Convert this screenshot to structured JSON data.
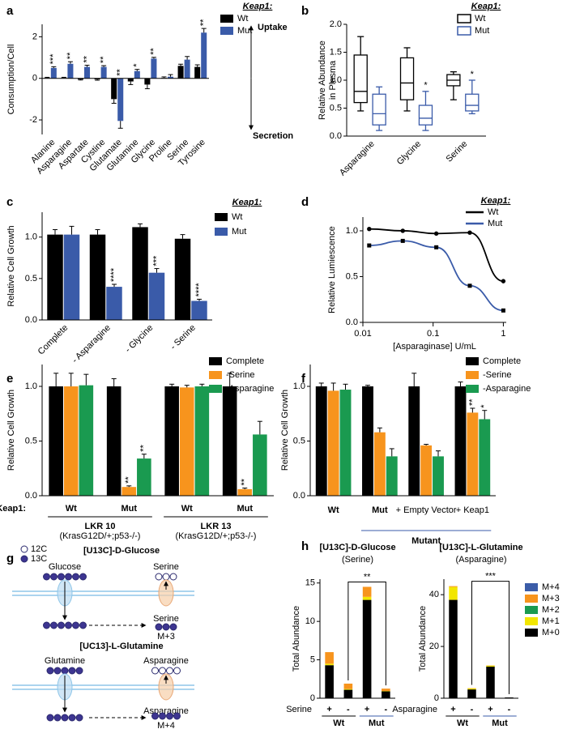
{
  "chart_data": [
    {
      "type": "bar",
      "panel": "a",
      "ylabel": "Consumption/Cell",
      "legend_title": "Keap1:",
      "uptake_label": "Uptake",
      "secretion_label": "Secretion",
      "categories": [
        "Alanine",
        "Asparagine",
        "Aspartate",
        "Cystine",
        "Glutamate",
        "Glutamine",
        "Glycine",
        "Proline",
        "Serine",
        "Tyrosine"
      ],
      "series": [
        {
          "name": "Wt",
          "color": "#000000",
          "values": [
            0.02,
            0.02,
            -0.05,
            -0.05,
            -1.0,
            -0.15,
            -0.3,
            0.02,
            0.6,
            0.55
          ],
          "errors": [
            0.03,
            0.03,
            0.03,
            0.04,
            0.2,
            0.15,
            0.2,
            0.05,
            0.08,
            0.1
          ]
        },
        {
          "name": "Mut",
          "color": "#3a5ba9",
          "values": [
            0.5,
            0.7,
            0.55,
            0.55,
            -2.05,
            0.35,
            0.95,
            0.08,
            0.9,
            2.2
          ],
          "errors": [
            0.06,
            0.1,
            0.08,
            0.06,
            0.35,
            0.08,
            0.06,
            0.1,
            0.15,
            0.2
          ],
          "significance": [
            "***",
            "**",
            "**",
            "**",
            "**",
            "*",
            "**",
            null,
            null,
            "**"
          ]
        }
      ],
      "ylim": [
        -2.7,
        2.6
      ],
      "yticks": [
        -2,
        0,
        2
      ]
    },
    {
      "type": "box",
      "panel": "b",
      "ylabel": [
        "Relative Abundance",
        "in Plasma"
      ],
      "legend_title": "Keap1:",
      "categories": [
        "Asparagine",
        "Glycine",
        "Serine"
      ],
      "series": [
        {
          "name": "Wt",
          "color": "#000000",
          "stats": [
            {
              "min": 0.45,
              "q1": 0.6,
              "median": 0.8,
              "q3": 1.45,
              "max": 1.78
            },
            {
              "min": 0.45,
              "q1": 0.65,
              "median": 0.95,
              "q3": 1.4,
              "max": 1.58
            },
            {
              "min": 0.65,
              "q1": 0.9,
              "median": 1.0,
              "q3": 1.1,
              "max": 1.15
            }
          ]
        },
        {
          "name": "Mut",
          "color": "#3a5ba9",
          "stats": [
            {
              "min": 0.1,
              "q1": 0.2,
              "median": 0.4,
              "q3": 0.75,
              "max": 0.88
            },
            {
              "min": 0.1,
              "q1": 0.2,
              "median": 0.32,
              "q3": 0.55,
              "max": 0.8
            },
            {
              "min": 0.4,
              "q1": 0.45,
              "median": 0.55,
              "q3": 0.75,
              "max": 1.0
            }
          ],
          "significance": [
            null,
            "*",
            "*"
          ]
        }
      ],
      "ylim": [
        0,
        2
      ],
      "yticks": [
        {
          "value": 0,
          "label": "0.0"
        },
        0.5,
        {
          "value": 1,
          "label": "1.0"
        },
        1.5,
        {
          "value": 2,
          "label": "2.0"
        }
      ]
    },
    {
      "type": "bar",
      "panel": "c",
      "ylabel": "Relative Cell Growth",
      "legend_title": "Keap1:",
      "categories": [
        "Complete",
        "- Asparagine",
        "- Glycine",
        "- Serine"
      ],
      "series": [
        {
          "name": "Wt",
          "color": "#000000",
          "values": [
            1.03,
            1.03,
            1.12,
            0.98
          ],
          "errors": [
            0.06,
            0.06,
            0.04,
            0.05
          ]
        },
        {
          "name": "Mut",
          "color": "#3a5ba9",
          "values": [
            1.03,
            0.4,
            0.57,
            0.23
          ],
          "errors": [
            0.1,
            0.03,
            0.05,
            0.02
          ],
          "significance": [
            null,
            "****",
            "***",
            "****"
          ]
        }
      ],
      "ylim": [
        0,
        1.3
      ],
      "yticks": [
        {
          "value": 0,
          "label": "0.0"
        },
        0.5,
        {
          "value": 1,
          "label": "1.0"
        }
      ]
    },
    {
      "type": "line",
      "panel": "d",
      "ylabel": "Relative Lumiescence",
      "xlabel": "[Asparaginase] U/mL",
      "legend_title": "Keap1:",
      "x": [
        0.0123,
        0.037,
        0.111,
        0.333,
        1
      ],
      "series": [
        {
          "name": "Wt",
          "color": "#000000",
          "marker": "circle",
          "values": [
            1.02,
            1.0,
            0.97,
            0.98,
            0.45
          ]
        },
        {
          "name": "Mut",
          "color": "#3a5ba9",
          "marker": "square",
          "values": [
            0.84,
            0.89,
            0.82,
            0.4,
            0.13
          ]
        }
      ],
      "log_x": true,
      "xlim": [
        0.01,
        1.1
      ],
      "xticks": [
        0.01,
        0.1,
        1
      ],
      "ylim": [
        0,
        1.15
      ],
      "yticks": [
        {
          "value": 0,
          "label": "0.0"
        },
        0.5,
        {
          "value": 1,
          "label": "1.0"
        }
      ]
    },
    {
      "type": "bar",
      "panel": "e",
      "ylabel": "Relative Cell Growth",
      "row_label": "Keap1:",
      "categories": [
        "Wt",
        "Mut",
        "Wt",
        "Mut"
      ],
      "groups": [
        "LKR 10",
        "LKR 13"
      ],
      "group_sublabels": [
        "(KrasG12D/+;p53-/-)",
        "(KrasG12D/+;p53-/-)"
      ],
      "series": [
        {
          "name": "Complete",
          "color": "#000000",
          "values": [
            1.0,
            1.0,
            1.0,
            1.0
          ],
          "errors": [
            0.12,
            0.07,
            0.02,
            0.12
          ]
        },
        {
          "name": "-Serine",
          "color": "#f7941d",
          "values": [
            1.0,
            0.08,
            0.99,
            0.06
          ],
          "errors": [
            0.12,
            0.01,
            0.02,
            0.01
          ],
          "significance": [
            null,
            "**",
            null,
            "**"
          ]
        },
        {
          "name": "-Asparagine",
          "color": "#1a9a50",
          "values": [
            1.01,
            0.34,
            1.0,
            0.56
          ],
          "errors": [
            0.1,
            0.04,
            0.02,
            0.12
          ],
          "significance": [
            null,
            "**",
            null,
            null
          ]
        }
      ],
      "ylim": [
        0,
        1.2
      ],
      "yticks": [
        {
          "value": 0,
          "label": "0.0"
        },
        0.5,
        {
          "value": 1,
          "label": "1.0"
        }
      ]
    },
    {
      "type": "bar",
      "panel": "f",
      "ylabel": "Relative Cell Growth",
      "categories": [
        "Wt",
        "Mut",
        "+ Empty Vector",
        "+ Keap1"
      ],
      "category_colors": [
        "#000000",
        "#3a5ba9",
        "#000000",
        "#000000"
      ],
      "groups": [
        "Mutant"
      ],
      "group_colors": [
        "#3a5ba9"
      ],
      "series": [
        {
          "name": "Complete",
          "color": "#000000",
          "values": [
            1.0,
            1.0,
            1.0,
            1.0
          ],
          "errors": [
            0.03,
            0.01,
            0.12,
            0.04
          ]
        },
        {
          "name": "-Serine",
          "color": "#f7941d",
          "values": [
            0.96,
            0.58,
            0.46,
            0.76
          ],
          "errors": [
            0.07,
            0.04,
            0.01,
            0.04
          ],
          "significance": [
            null,
            null,
            null,
            "**"
          ]
        },
        {
          "name": "-Asparagine",
          "color": "#1a9a50",
          "values": [
            0.97,
            0.36,
            0.36,
            0.7
          ],
          "errors": [
            0.05,
            0.07,
            0.05,
            0.08
          ],
          "significance": [
            null,
            null,
            null,
            "*"
          ]
        }
      ],
      "ylim": [
        0,
        1.2
      ],
      "yticks": [
        {
          "value": 0,
          "label": "0.0"
        },
        0.5,
        {
          "value": 1,
          "label": "1.0"
        }
      ]
    },
    {
      "type": "bar",
      "stacked": true,
      "panel": "h",
      "title": "[U13C]-D-Glucose",
      "subtitle": "(Serine)",
      "ylabel": "Total Abundance",
      "row_label": "Serine",
      "categories": [
        "+",
        "-",
        "+",
        "-"
      ],
      "groups": [
        "Wt",
        "Mut"
      ],
      "group_colors": [
        "#000000",
        "#3a5ba9"
      ],
      "significance": "**",
      "series": [
        {
          "color": "#000000",
          "values": [
            4.3,
            1.1,
            12.8,
            0.9
          ]
        },
        {
          "color": "#f2e600",
          "values": [
            0.2,
            0.1,
            0.4,
            0.05
          ]
        },
        {
          "color": "#1a9a50",
          "values": [
            0,
            0,
            0,
            0
          ]
        },
        {
          "color": "#f7941d",
          "values": [
            1.5,
            0.7,
            1.3,
            0.3
          ]
        },
        {
          "color": "#3b5ca8",
          "values": [
            0,
            0,
            0,
            0
          ]
        }
      ],
      "ylim": [
        0,
        15.5
      ],
      "yticks": [
        0,
        5,
        10,
        15
      ]
    },
    {
      "type": "bar",
      "stacked": true,
      "title": "[U13C]-L-Glutamine",
      "subtitle": "(Asparagine)",
      "ylabel": "Total Abundance",
      "row_label": "Asparagine",
      "categories": [
        "+",
        "-",
        "+",
        "-"
      ],
      "groups": [
        "Wt",
        "Mut"
      ],
      "group_colors": [
        "#000000",
        "#3a5ba9"
      ],
      "significance": "***",
      "series": [
        {
          "name": "M+0",
          "color": "#000000",
          "values": [
            38,
            3.4,
            12.2,
            0.3
          ]
        },
        {
          "name": "M+1",
          "color": "#f2e600",
          "values": [
            5,
            0.4,
            0.4,
            0
          ]
        },
        {
          "name": "M+2",
          "color": "#1a9a50",
          "values": [
            0,
            0,
            0,
            0
          ]
        },
        {
          "name": "M+3",
          "color": "#f7941d",
          "values": [
            0.3,
            0.1,
            0.1,
            0
          ]
        },
        {
          "name": "M+4",
          "color": "#3b5ca8",
          "values": [
            0,
            0,
            0,
            0
          ]
        }
      ],
      "ylim": [
        0,
        46
      ],
      "yticks": [
        0,
        20,
        40
      ]
    }
  ],
  "diagram": {
    "panel": "g",
    "legend": [
      "12C",
      "13C"
    ],
    "glucose": {
      "title": "[U13C]-D-Glucose",
      "source": "Glucose",
      "product_top": "Serine",
      "product_bottom": "Serine",
      "label": "M+3"
    },
    "glutamine": {
      "title": "[UC13]-L-Glutamine",
      "source": "Glutamine",
      "product_top": "Asparagine",
      "product_bottom": "Asparagine",
      "label": "M+4"
    }
  }
}
